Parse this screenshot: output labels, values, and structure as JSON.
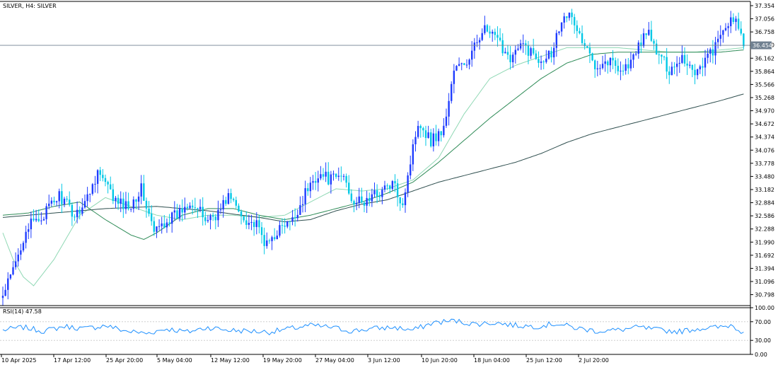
{
  "header": {
    "title": "SILVER, H4:  SILVER"
  },
  "colors": {
    "up": "#1e3cff",
    "down": "#00c8e6",
    "ma_fast": "#8fd8b4",
    "ma_mid": "#2e8b57",
    "ma_slow": "#2f4f4f",
    "rsi": "#1e90ff",
    "grid": "#c8c8c8",
    "price_line": "#708090"
  },
  "chart_data": [
    {
      "type": "candlestick",
      "title": "SILVER, H4:  SILVER",
      "ylim": [
        30.55,
        37.45
      ],
      "y_ticks": [
        "37.354",
        "37.056",
        "36.758",
        "36.460",
        "36.162",
        "35.864",
        "35.566",
        "35.268",
        "34.970",
        "34.672",
        "34.374",
        "34.076",
        "33.778",
        "33.480",
        "33.182",
        "32.884",
        "32.586",
        "32.288",
        "31.990",
        "31.692",
        "31.394",
        "31.096",
        "30.798"
      ],
      "x_ticks": [
        "10 Apr 2025",
        "17 Apr 12:00",
        "25 Apr 20:00",
        "5 May 04:00",
        "12 May 12:00",
        "19 May 20:00",
        "27 May 04:00",
        "3 Jun 12:00",
        "10 Jun 20:00",
        "18 Jun 04:00",
        "25 Jun 12:00",
        "2 Jul 20:00"
      ],
      "current_price": "36.454",
      "close_path": [
        [
          0,
          30.75
        ],
        [
          5,
          31.5
        ],
        [
          9,
          32.3
        ],
        [
          15,
          32.55
        ],
        [
          22,
          33.05
        ],
        [
          28,
          32.6
        ],
        [
          33,
          33.0
        ],
        [
          37,
          33.6
        ],
        [
          44,
          32.9
        ],
        [
          49,
          32.8
        ],
        [
          54,
          33.2
        ],
        [
          59,
          32.2
        ],
        [
          64,
          32.5
        ],
        [
          68,
          32.6
        ],
        [
          73,
          32.95
        ],
        [
          79,
          32.5
        ],
        [
          84,
          32.65
        ],
        [
          88,
          33.05
        ],
        [
          93,
          32.6
        ],
        [
          99,
          32.35
        ],
        [
          103,
          31.9
        ],
        [
          107,
          32.25
        ],
        [
          113,
          32.45
        ],
        [
          118,
          33.1
        ],
        [
          123,
          33.55
        ],
        [
          128,
          33.4
        ],
        [
          133,
          33.5
        ],
        [
          136,
          33.0
        ],
        [
          140,
          32.85
        ],
        [
          146,
          33.1
        ],
        [
          152,
          33.3
        ],
        [
          156,
          32.9
        ],
        [
          162,
          34.75
        ],
        [
          167,
          34.3
        ],
        [
          172,
          34.55
        ],
        [
          176,
          35.9
        ],
        [
          182,
          36.1
        ],
        [
          187,
          36.85
        ],
        [
          192,
          36.6
        ],
        [
          198,
          36.2
        ],
        [
          203,
          36.45
        ],
        [
          209,
          36.15
        ],
        [
          214,
          36.3
        ],
        [
          219,
          37.25
        ],
        [
          223,
          36.95
        ],
        [
          227,
          36.4
        ],
        [
          231,
          36.05
        ],
        [
          237,
          36.1
        ],
        [
          242,
          35.9
        ],
        [
          246,
          36.15
        ],
        [
          251,
          36.8
        ],
        [
          255,
          36.3
        ],
        [
          260,
          35.9
        ],
        [
          265,
          36.2
        ],
        [
          270,
          35.85
        ],
        [
          275,
          36.2
        ],
        [
          279,
          36.5
        ],
        [
          283,
          37.0
        ],
        [
          287,
          36.9
        ],
        [
          289,
          36.45
        ]
      ],
      "ma_fast_path": [
        [
          0,
          32.2
        ],
        [
          4,
          31.6
        ],
        [
          8,
          31.2
        ],
        [
          12,
          31.0
        ],
        [
          20,
          31.6
        ],
        [
          30,
          32.6
        ],
        [
          40,
          33.0
        ],
        [
          50,
          32.8
        ],
        [
          60,
          32.6
        ],
        [
          70,
          32.5
        ],
        [
          80,
          32.6
        ],
        [
          90,
          32.6
        ],
        [
          100,
          32.55
        ],
        [
          110,
          32.6
        ],
        [
          120,
          32.9
        ],
        [
          130,
          33.2
        ],
        [
          140,
          33.15
        ],
        [
          150,
          33.2
        ],
        [
          160,
          33.4
        ],
        [
          170,
          33.9
        ],
        [
          180,
          34.9
        ],
        [
          190,
          35.7
        ],
        [
          200,
          36.0
        ],
        [
          210,
          36.2
        ],
        [
          220,
          36.4
        ],
        [
          230,
          36.4
        ],
        [
          240,
          36.4
        ],
        [
          250,
          36.35
        ],
        [
          260,
          36.3
        ],
        [
          270,
          36.3
        ],
        [
          280,
          36.35
        ],
        [
          289,
          36.4
        ]
      ],
      "ma_mid_path": [
        [
          0,
          32.6
        ],
        [
          10,
          32.65
        ],
        [
          20,
          32.8
        ],
        [
          30,
          32.9
        ],
        [
          40,
          32.5
        ],
        [
          50,
          32.15
        ],
        [
          55,
          32.05
        ],
        [
          60,
          32.2
        ],
        [
          70,
          32.6
        ],
        [
          80,
          32.75
        ],
        [
          90,
          32.75
        ],
        [
          100,
          32.6
        ],
        [
          110,
          32.5
        ],
        [
          120,
          32.6
        ],
        [
          130,
          32.75
        ],
        [
          140,
          32.9
        ],
        [
          150,
          33.1
        ],
        [
          160,
          33.35
        ],
        [
          170,
          33.8
        ],
        [
          180,
          34.3
        ],
        [
          190,
          34.8
        ],
        [
          200,
          35.25
        ],
        [
          210,
          35.7
        ],
        [
          220,
          36.05
        ],
        [
          230,
          36.25
        ],
        [
          240,
          36.3
        ],
        [
          250,
          36.3
        ],
        [
          260,
          36.3
        ],
        [
          270,
          36.3
        ],
        [
          280,
          36.3
        ],
        [
          289,
          36.35
        ]
      ],
      "ma_slow_path": [
        [
          0,
          32.55
        ],
        [
          20,
          32.65
        ],
        [
          40,
          32.75
        ],
        [
          60,
          32.8
        ],
        [
          80,
          32.7
        ],
        [
          100,
          32.55
        ],
        [
          110,
          32.45
        ],
        [
          120,
          32.5
        ],
        [
          130,
          32.7
        ],
        [
          140,
          32.85
        ],
        [
          150,
          32.95
        ],
        [
          160,
          33.15
        ],
        [
          170,
          33.35
        ],
        [
          180,
          33.5
        ],
        [
          190,
          33.65
        ],
        [
          200,
          33.8
        ],
        [
          210,
          34.0
        ],
        [
          220,
          34.25
        ],
        [
          230,
          34.45
        ],
        [
          240,
          34.6
        ],
        [
          250,
          34.75
        ],
        [
          260,
          34.9
        ],
        [
          270,
          35.05
        ],
        [
          280,
          35.2
        ],
        [
          289,
          35.35
        ]
      ]
    },
    {
      "type": "line",
      "title": "RSI(14) 47.58",
      "ylim": [
        0,
        100
      ],
      "y_ticks": [
        "100.00",
        "70.00",
        "30.00",
        "0.00"
      ],
      "levels": [
        70,
        30
      ],
      "rsi_path": [
        [
          0,
          52
        ],
        [
          8,
          58
        ],
        [
          16,
          50
        ],
        [
          24,
          60
        ],
        [
          32,
          55
        ],
        [
          40,
          62
        ],
        [
          48,
          50
        ],
        [
          56,
          45
        ],
        [
          64,
          55
        ],
        [
          72,
          48
        ],
        [
          80,
          58
        ],
        [
          88,
          52
        ],
        [
          96,
          50
        ],
        [
          104,
          48
        ],
        [
          112,
          55
        ],
        [
          120,
          62
        ],
        [
          128,
          58
        ],
        [
          136,
          50
        ],
        [
          144,
          55
        ],
        [
          152,
          58
        ],
        [
          160,
          52
        ],
        [
          168,
          68
        ],
        [
          176,
          72
        ],
        [
          184,
          65
        ],
        [
          192,
          68
        ],
        [
          200,
          62
        ],
        [
          208,
          60
        ],
        [
          216,
          66
        ],
        [
          224,
          56
        ],
        [
          232,
          50
        ],
        [
          240,
          52
        ],
        [
          248,
          58
        ],
        [
          256,
          52
        ],
        [
          264,
          49
        ],
        [
          272,
          56
        ],
        [
          280,
          58
        ],
        [
          284,
          63
        ],
        [
          289,
          47.58
        ]
      ]
    }
  ]
}
